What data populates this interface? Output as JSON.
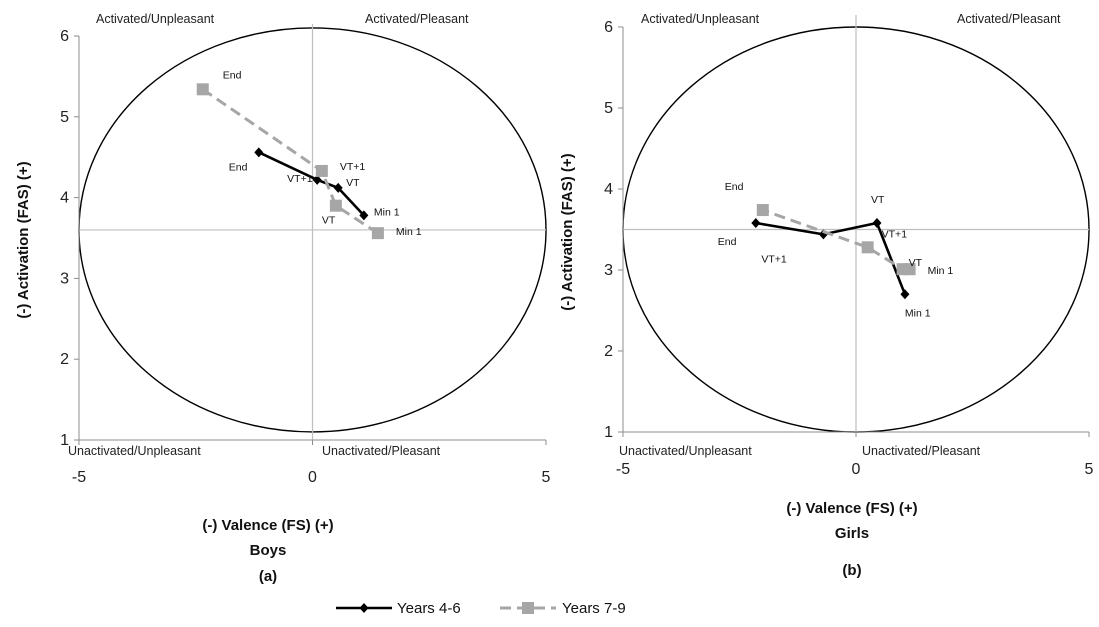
{
  "charts": [
    {
      "type": "line",
      "subtitle": "Boys",
      "panel_label": "(a)",
      "xlabel": "(-) Valence (FS) (+)",
      "ylabel": "(-) Activation (FAS) (+)",
      "xlim": [
        -5,
        5
      ],
      "ylim": [
        1,
        6
      ],
      "xticks": [
        "-5",
        "0",
        "5"
      ],
      "yticks": [
        "1",
        "2",
        "3",
        "4",
        "5",
        "6"
      ],
      "quadrants": {
        "top_left": "Activated/Unpleasant",
        "top_right": "Activated/Pleasant",
        "bottom_left": "Unactivated/Unpleasant",
        "bottom_right": "Unactivated/Pleasant"
      },
      "circle": {
        "center": [
          0,
          3.6
        ],
        "rx": 5,
        "ry": 2.5
      },
      "series": [
        {
          "name": "Years 4-6",
          "style": "solid",
          "color": "#000000",
          "points": [
            {
              "label": "Min 1",
              "x": 1.1,
              "y": 3.78
            },
            {
              "label": "VT",
              "x": 0.55,
              "y": 4.12
            },
            {
              "label": "VT+1",
              "x": 0.1,
              "y": 4.22
            },
            {
              "label": "End",
              "x": -1.15,
              "y": 4.56
            }
          ]
        },
        {
          "name": "Years 7-9",
          "style": "dashed",
          "color": "#a6a6a6",
          "points": [
            {
              "label": "Min 1",
              "x": 1.4,
              "y": 3.56
            },
            {
              "label": "VT",
              "x": 0.5,
              "y": 3.9
            },
            {
              "label": "VT+1",
              "x": 0.2,
              "y": 4.33
            },
            {
              "label": "End",
              "x": -2.35,
              "y": 5.34
            }
          ]
        }
      ]
    },
    {
      "type": "line",
      "subtitle": "Girls",
      "panel_label": "(b)",
      "xlabel": "(-) Valence (FS) (+)",
      "ylabel": "(-) Activation (FAS) (+)",
      "xlim": [
        -5,
        5
      ],
      "ylim": [
        1,
        6
      ],
      "xticks": [
        "-5",
        "0",
        "5"
      ],
      "yticks": [
        "1",
        "2",
        "3",
        "4",
        "5",
        "6"
      ],
      "quadrants": {
        "top_left": "Activated/Unpleasant",
        "top_right": "Activated/Pleasant",
        "bottom_left": "Unactivated/Unpleasant",
        "bottom_right": "Unactivated/Pleasant"
      },
      "circle": {
        "center": [
          0,
          3.5
        ],
        "rx": 5,
        "ry": 2.5
      },
      "series": [
        {
          "name": "Years 4-6",
          "style": "solid",
          "color": "#000000",
          "points": [
            {
              "label": "Min 1",
              "x": 1.05,
              "y": 2.7
            },
            {
              "label": "VT",
              "x": 0.45,
              "y": 3.58
            },
            {
              "label": "VT+1",
              "x": -0.7,
              "y": 3.44
            },
            {
              "label": "End",
              "x": -2.15,
              "y": 3.58
            }
          ]
        },
        {
          "name": "Years 7-9",
          "style": "dashed",
          "color": "#a6a6a6",
          "points": [
            {
              "label": "Min 1",
              "x": 1.15,
              "y": 3.01
            },
            {
              "label": "VT",
              "x": 1.0,
              "y": 3.01
            },
            {
              "label": "VT+1",
              "x": 0.25,
              "y": 3.28
            },
            {
              "label": "End",
              "x": -2.0,
              "y": 3.74
            }
          ]
        }
      ]
    }
  ],
  "legend": {
    "placement": "bottom-center",
    "items": [
      {
        "name": "Years 4-6",
        "color": "#000000",
        "style": "solid",
        "marker": "diamond"
      },
      {
        "name": "Years 7-9",
        "color": "#a6a6a6",
        "style": "dashed",
        "marker": "square"
      }
    ]
  }
}
